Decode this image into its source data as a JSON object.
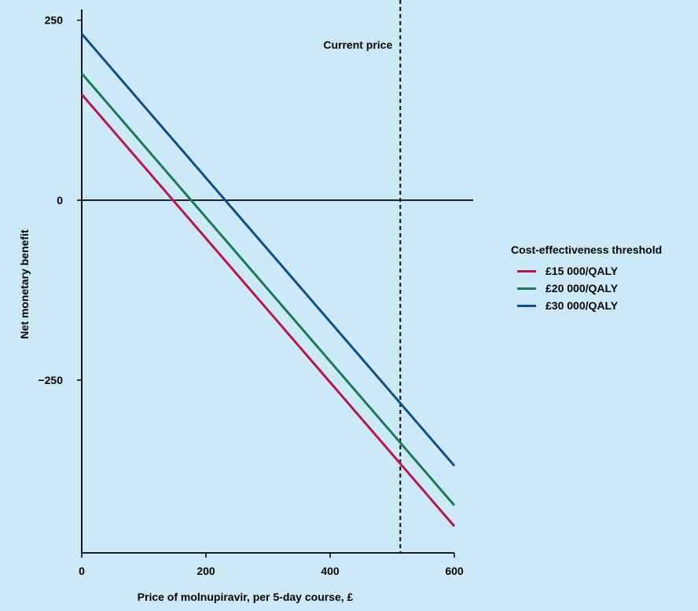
{
  "chart_data": {
    "type": "line",
    "xlabel": "Price of molnupiravir, per 5-day course, £",
    "ylabel": "Net monetary benefit",
    "xlim": [
      0,
      600
    ],
    "ylim": [
      -490,
      265
    ],
    "xticks": [
      0,
      200,
      400,
      600
    ],
    "yticks": [
      250,
      0,
      -250
    ],
    "ytick_labels": [
      "250",
      "0",
      "−250"
    ],
    "grid": false,
    "zero_line": 0,
    "annotation": {
      "label": "Current price",
      "x": 513
    },
    "legend": {
      "title": "Cost-effectiveness threshold",
      "position": "right"
    },
    "series": [
      {
        "name": "£15 000/QALY",
        "color": "#b5174b",
        "x": [
          0,
          600
        ],
        "y": [
          147,
          -453
        ]
      },
      {
        "name": "£20 000/QALY",
        "color": "#1b7a55",
        "x": [
          0,
          600
        ],
        "y": [
          176,
          -424
        ]
      },
      {
        "name": "£30 000/QALY",
        "color": "#0a4f8c",
        "x": [
          0,
          600
        ],
        "y": [
          231,
          -369
        ]
      }
    ]
  }
}
